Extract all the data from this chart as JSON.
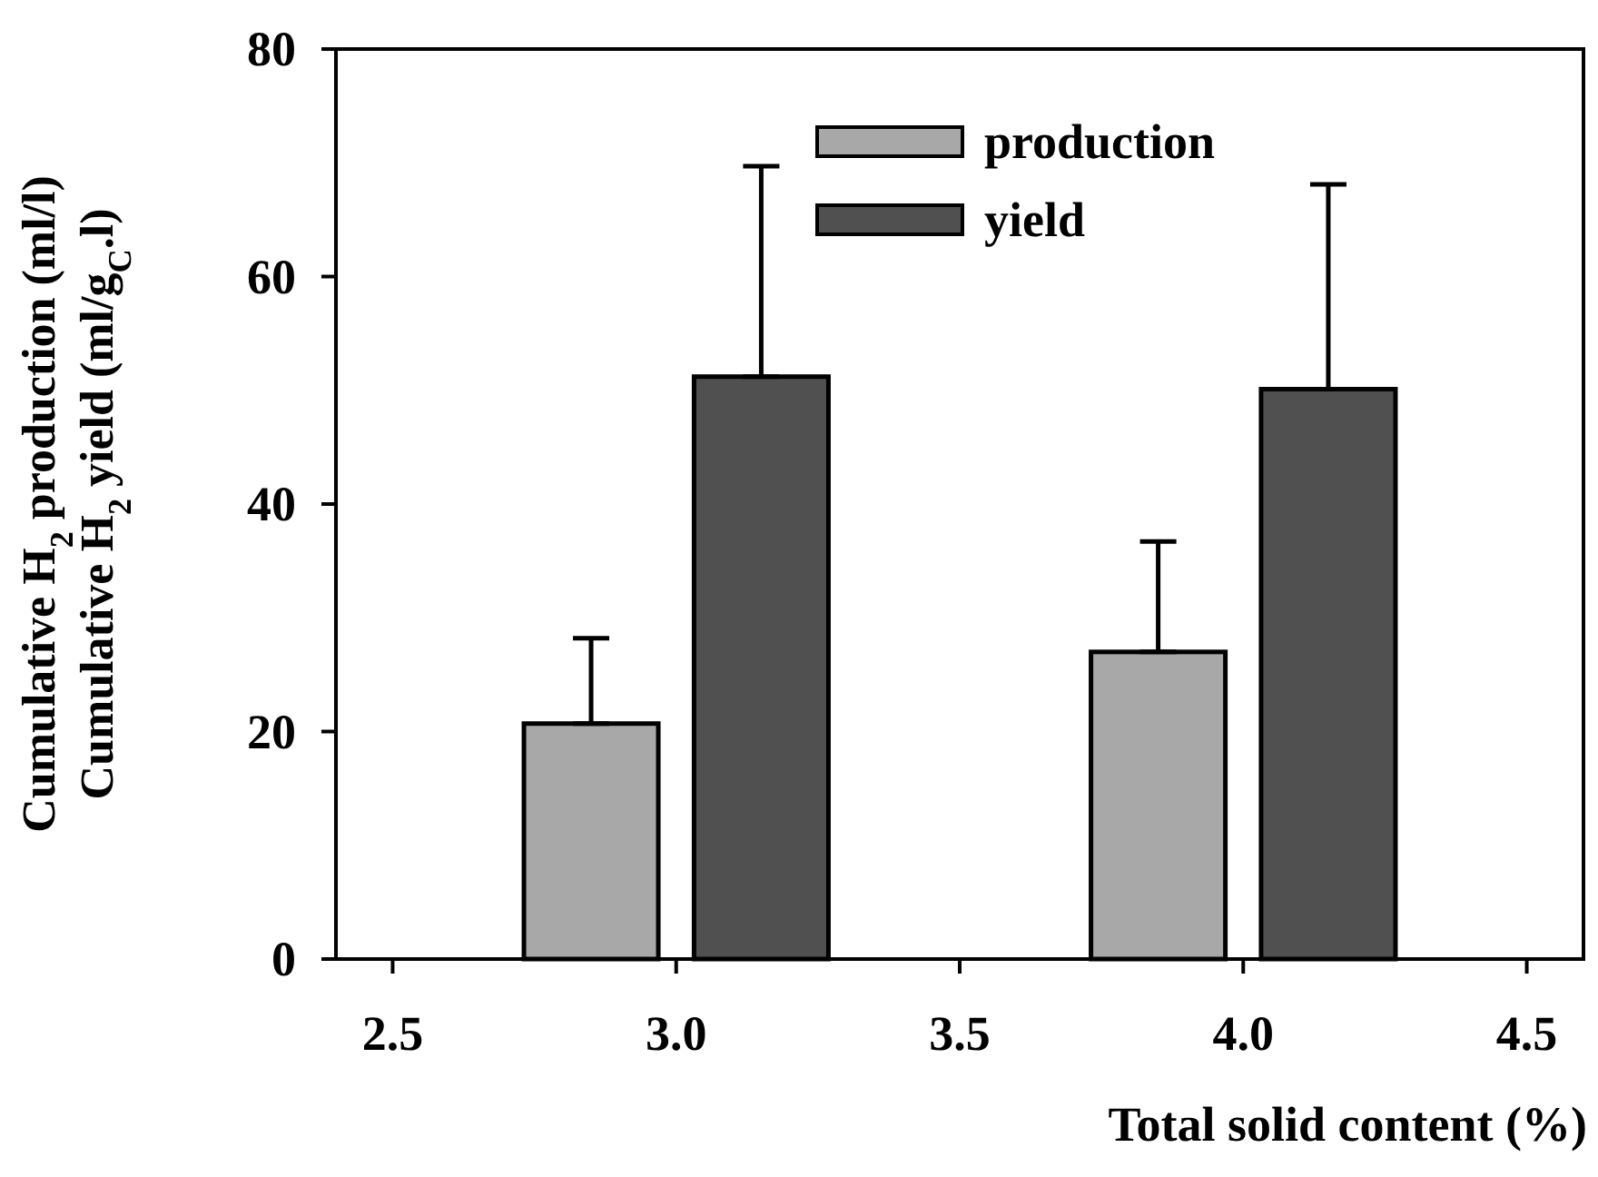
{
  "chart_data": {
    "type": "bar",
    "xlabel": "Total solid content (%)",
    "ylabel": "Cumulative H$_{2}$ production (ml/l)\nCumulative H$_{2}$ yield (ml/g$_{C}$.l)",
    "x": [
      3,
      4
    ],
    "series": [
      {
        "name": "production",
        "color": "#a8a8a8",
        "values": [
          20.7,
          27.0
        ],
        "errors": [
          [
            20.7,
            28.2
          ],
          [
            27.0,
            36.7
          ]
        ]
      },
      {
        "name": "yield",
        "color": "#505050",
        "values": [
          51.2,
          50.1
        ],
        "errors": [
          [
            51.2,
            69.7
          ],
          [
            50.1,
            68.1
          ]
        ]
      }
    ],
    "xlim": [
      2.4,
      4.6
    ],
    "xticks": [
      {
        "value": 2.5,
        "label": "2.5"
      },
      {
        "value": 3,
        "label": "3.0"
      },
      {
        "value": 3.5,
        "label": "3.5"
      },
      {
        "value": 4,
        "label": "4.0"
      },
      {
        "value": 4.5,
        "label": "4.5"
      }
    ],
    "ylim": [
      0,
      80
    ],
    "yticks": [
      0,
      20,
      40,
      60,
      80
    ],
    "grid": false,
    "legend": "top"
  }
}
